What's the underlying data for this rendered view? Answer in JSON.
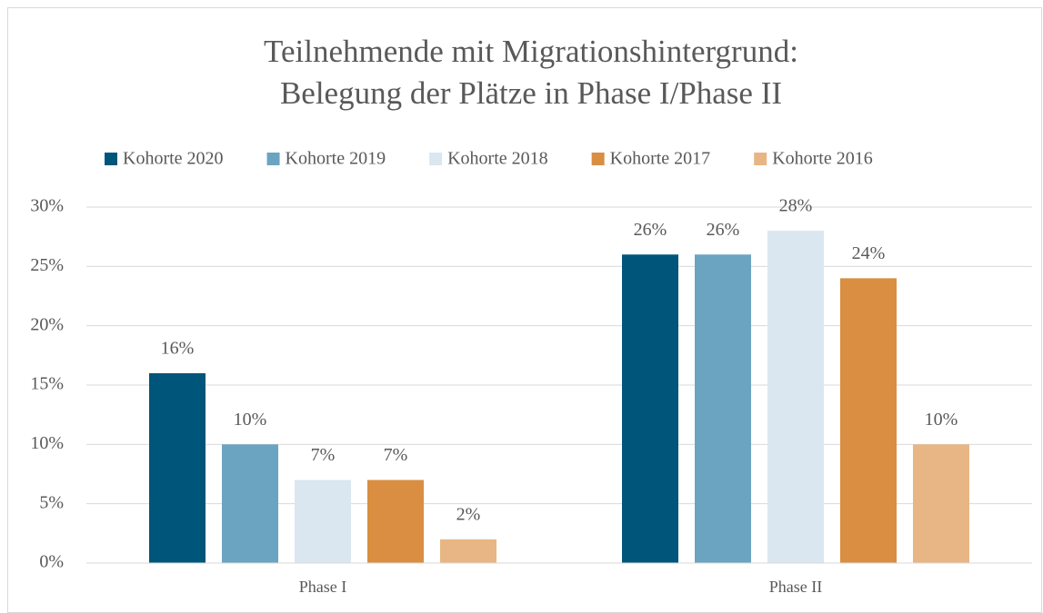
{
  "chart_data": {
    "type": "bar",
    "title": [
      "Teilnehmende mit Migrationshintergrund:",
      "Belegung der Plätze in Phase I/Phase II"
    ],
    "categories": [
      "Phase I",
      "Phase II"
    ],
    "series": [
      {
        "name": "Kohorte 2020",
        "color": "#00557a",
        "values": [
          16,
          26
        ],
        "value_labels": [
          "16%",
          "26%"
        ]
      },
      {
        "name": "Kohorte 2019",
        "color": "#6ba4c1",
        "values": [
          10,
          26
        ],
        "value_labels": [
          "10%",
          "26%"
        ]
      },
      {
        "name": "Kohorte 2018",
        "color": "#dae7f0",
        "values": [
          7,
          28
        ],
        "value_labels": [
          "7%",
          "28%"
        ]
      },
      {
        "name": "Kohorte 2017",
        "color": "#d98e41",
        "values": [
          7,
          24
        ],
        "value_labels": [
          "7%",
          "24%"
        ]
      },
      {
        "name": "Kohorte 2016",
        "color": "#e8b684",
        "values": [
          2,
          10
        ],
        "value_labels": [
          "2%",
          "10%"
        ]
      }
    ],
    "ylim": [
      0,
      30
    ],
    "yticks": [
      {
        "value": 0,
        "label": "0%"
      },
      {
        "value": 5,
        "label": "5%"
      },
      {
        "value": 10,
        "label": "10%"
      },
      {
        "value": 15,
        "label": "15%"
      },
      {
        "value": 20,
        "label": "20%"
      },
      {
        "value": 25,
        "label": "25%"
      },
      {
        "value": 30,
        "label": "30%"
      }
    ],
    "grid": true,
    "legend": "top"
  }
}
